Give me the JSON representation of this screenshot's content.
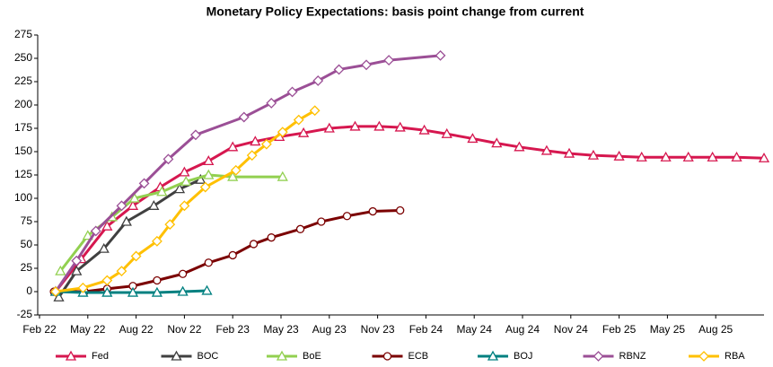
{
  "chart_data": {
    "type": "line",
    "title": "Monetary Policy Expectations: basis point change from current",
    "xlim": [
      0,
      45
    ],
    "xticks": [
      {
        "value": 0,
        "label": "Feb 22"
      },
      {
        "value": 3,
        "label": "May 22"
      },
      {
        "value": 6,
        "label": "Aug 22"
      },
      {
        "value": 9,
        "label": "Nov 22"
      },
      {
        "value": 12,
        "label": "Feb 23"
      },
      {
        "value": 15,
        "label": "May 23"
      },
      {
        "value": 18,
        "label": "Aug 23"
      },
      {
        "value": 21,
        "label": "Nov 23"
      },
      {
        "value": 24,
        "label": "Feb 24"
      },
      {
        "value": 27,
        "label": "May 24"
      },
      {
        "value": 30,
        "label": "Aug 24"
      },
      {
        "value": 33,
        "label": "Nov 24"
      },
      {
        "value": 36,
        "label": "Feb 25"
      },
      {
        "value": 39,
        "label": "May 25"
      },
      {
        "value": 42,
        "label": "Aug 25"
      }
    ],
    "ylim": [
      -25,
      275
    ],
    "yticks": [
      -25,
      0,
      25,
      50,
      75,
      100,
      125,
      150,
      175,
      200,
      225,
      250,
      275
    ],
    "grid": false,
    "legend": "bottom",
    "series": [
      {
        "name": "Fed",
        "color": "#d6174f",
        "marker": "triangle",
        "x": [
          1.0,
          2.6,
          4.2,
          5.8,
          7.5,
          9.0,
          10.5,
          12.0,
          13.4,
          14.9,
          16.4,
          18.0,
          19.6,
          21.1,
          22.4,
          23.9,
          25.3,
          26.9,
          28.4,
          29.8,
          31.5,
          32.9,
          34.4,
          36.0,
          37.4,
          38.9,
          40.3,
          41.8,
          43.3,
          45.0
        ],
        "values": [
          0,
          35,
          70,
          92,
          112,
          128,
          140,
          155,
          161,
          166,
          170,
          175,
          177,
          177,
          176,
          173,
          169,
          164,
          159,
          155,
          151,
          148,
          146,
          145,
          144,
          144,
          144,
          144,
          144,
          143
        ]
      },
      {
        "name": "BOC",
        "color": "#404040",
        "marker": "triangle",
        "x": [
          1.2,
          2.3,
          4.0,
          5.4,
          7.1,
          8.7,
          10.0
        ],
        "values": [
          -6,
          22,
          46,
          75,
          92,
          110,
          120
        ]
      },
      {
        "name": "BoE",
        "color": "#92d050",
        "marker": "triangle",
        "x": [
          1.3,
          3.0,
          4.5,
          5.9,
          7.6,
          9.1,
          10.5,
          12.0,
          15.1
        ],
        "values": [
          22,
          60,
          80,
          100,
          107,
          118,
          125,
          123,
          123
        ]
      },
      {
        "name": "ECB",
        "color": "#7b0000",
        "marker": "circle",
        "x": [
          0.9,
          2.8,
          4.2,
          5.8,
          7.3,
          8.9,
          10.5,
          12.0,
          13.3,
          14.4,
          16.2,
          17.5,
          19.1,
          20.7,
          22.4
        ],
        "values": [
          0,
          0,
          3,
          6,
          12,
          19,
          31,
          39,
          51,
          58,
          67,
          75,
          81,
          86,
          87
        ]
      },
      {
        "name": "BOJ",
        "color": "#008080",
        "marker": "triangle",
        "x": [
          1.0,
          2.7,
          4.2,
          5.8,
          7.3,
          8.9,
          10.4
        ],
        "values": [
          0,
          -1,
          -1,
          -1,
          -1,
          0,
          1
        ]
      },
      {
        "name": "RBNZ",
        "color": "#9b4f96",
        "marker": "diamond",
        "x": [
          1.0,
          2.3,
          3.5,
          5.1,
          6.5,
          8.0,
          9.7,
          12.7,
          14.4,
          15.7,
          17.3,
          18.6,
          20.3,
          21.7,
          24.9
        ],
        "values": [
          0,
          33,
          65,
          92,
          116,
          142,
          168,
          187,
          202,
          214,
          226,
          238,
          243,
          248,
          253
        ]
      },
      {
        "name": "RBA",
        "color": "#ffc000",
        "marker": "diamond",
        "x": [
          1.0,
          2.7,
          4.2,
          5.1,
          6.0,
          7.3,
          8.1,
          9.0,
          10.3,
          12.2,
          13.2,
          14.1,
          15.1,
          16.1,
          17.1
        ],
        "values": [
          0,
          4,
          12,
          22,
          38,
          54,
          72,
          92,
          112,
          130,
          146,
          158,
          171,
          184,
          194
        ]
      }
    ]
  }
}
